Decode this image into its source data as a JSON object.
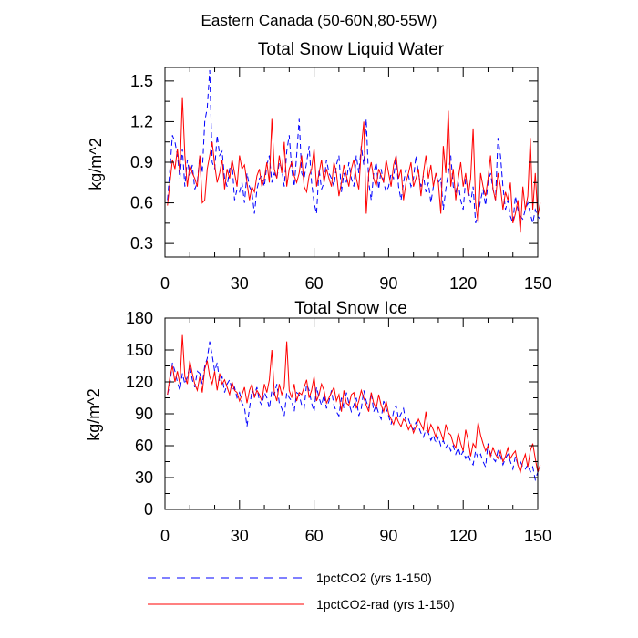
{
  "suptitle": "Eastern Canada (50-60N,80-55W)",
  "legend": {
    "placement": "bottom",
    "entries": [
      {
        "label": "1pctCO2 (yrs 1-150)",
        "color": "#0000ff",
        "dash": "dashed"
      },
      {
        "label": "1pctCO2-rad (yrs 1-150)",
        "color": "#ff0000",
        "dash": "solid"
      }
    ]
  },
  "chart_data": [
    {
      "type": "line",
      "title": "Total Snow Liquid Water",
      "ylabel": "kg/m^2",
      "xlabel": "",
      "xlim": [
        0,
        150
      ],
      "ylim": [
        0.2,
        1.6
      ],
      "xticks": [
        "0",
        "30",
        "60",
        "90",
        "120",
        "150"
      ],
      "yticks": [
        "0.3",
        "0.6",
        "0.9",
        "1.2",
        "1.5"
      ],
      "grid": false,
      "series": [
        {
          "name": "1pctCO2 (yrs 1-150)",
          "color": "#0000ff",
          "values": [
            0.62,
            0.85,
            1.1,
            1.05,
            0.95,
            0.78,
            1.0,
            0.72,
            0.92,
            0.8,
            0.88,
            0.7,
            0.75,
            0.95,
            0.82,
            1.2,
            1.3,
            1.58,
            0.9,
            0.85,
            1.1,
            0.95,
            0.98,
            0.78,
            0.72,
            0.85,
            0.9,
            0.62,
            0.7,
            0.68,
            0.75,
            0.6,
            0.82,
            0.72,
            0.68,
            0.52,
            0.7,
            0.78,
            0.8,
            0.72,
            0.88,
            0.95,
            0.75,
            0.82,
            0.78,
            0.9,
            0.85,
            0.72,
            0.98,
            1.1,
            0.85,
            0.72,
            0.95,
            1.22,
            0.82,
            0.78,
            0.9,
            1.02,
            0.75,
            0.6,
            0.52,
            0.85,
            0.7,
            0.75,
            0.92,
            0.82,
            0.78,
            0.72,
            0.88,
            0.95,
            0.68,
            0.82,
            0.75,
            0.9,
            0.78,
            0.72,
            0.95,
            0.82,
            1.02,
            0.88,
            1.22,
            0.75,
            0.62,
            0.82,
            0.9,
            0.7,
            0.85,
            0.75,
            0.68,
            0.72,
            0.82,
            0.78,
            0.95,
            0.72,
            0.62,
            0.75,
            0.85,
            0.8,
            0.72,
            0.78,
            0.95,
            0.82,
            0.72,
            0.8,
            0.68,
            0.75,
            0.6,
            0.72,
            0.82,
            0.75,
            0.78,
            0.55,
            0.7,
            0.82,
            0.95,
            0.72,
            0.68,
            0.75,
            0.62,
            0.55,
            0.78,
            0.7,
            0.6,
            0.72,
            0.45,
            0.52,
            0.62,
            0.7,
            0.58,
            0.75,
            0.82,
            0.7,
            0.62,
            1.08,
            0.95,
            0.72,
            0.55,
            0.62,
            0.5,
            0.45,
            0.65,
            0.55,
            0.5,
            0.48,
            0.55,
            0.6,
            0.52,
            0.45,
            0.55,
            0.5,
            0.48
          ]
        },
        {
          "name": "1pctCO2-rad (yrs 1-150)",
          "color": "#ff0000",
          "values": [
            0.58,
            0.75,
            0.92,
            0.85,
            1.0,
            0.82,
            1.38,
            0.95,
            0.72,
            0.88,
            0.82,
            0.78,
            0.72,
            0.95,
            0.6,
            0.62,
            0.85,
            0.95,
            1.05,
            0.88,
            0.75,
            0.82,
            0.92,
            0.7,
            0.85,
            0.78,
            0.92,
            0.82,
            0.72,
            0.95,
            0.85,
            0.88,
            0.75,
            0.62,
            0.72,
            0.68,
            0.8,
            0.85,
            0.72,
            0.78,
            0.9,
            0.75,
            1.22,
            0.85,
            0.78,
            0.95,
            0.82,
            1.05,
            0.72,
            0.85,
            0.9,
            0.8,
            0.75,
            0.82,
            0.95,
            0.72,
            0.68,
            0.8,
            0.85,
            1.0,
            0.72,
            0.82,
            0.92,
            0.75,
            0.85,
            0.78,
            0.72,
            0.9,
            0.82,
            0.65,
            0.75,
            0.88,
            0.8,
            0.72,
            0.85,
            0.92,
            0.78,
            0.7,
            1.0,
            1.2,
            0.52,
            0.82,
            0.9,
            0.78,
            0.72,
            0.85,
            0.8,
            0.75,
            0.92,
            0.82,
            0.72,
            0.88,
            0.95,
            0.78,
            0.85,
            0.62,
            0.75,
            0.82,
            0.9,
            0.72,
            0.78,
            0.85,
            0.65,
            0.82,
            0.95,
            0.78,
            0.88,
            0.72,
            0.82,
            0.75,
            0.52,
            1.02,
            0.82,
            1.28,
            0.72,
            0.85,
            0.62,
            0.78,
            0.9,
            0.72,
            0.82,
            0.65,
            0.78,
            1.15,
            0.6,
            0.45,
            0.82,
            0.72,
            0.65,
            0.78,
            0.95,
            0.7,
            0.62,
            0.82,
            0.72,
            0.55,
            0.68,
            0.62,
            0.75,
            0.45,
            0.52,
            0.62,
            0.38,
            0.72,
            0.55,
            0.65,
            1.08,
            0.55,
            0.82,
            0.5,
            0.6
          ]
        }
      ]
    },
    {
      "type": "line",
      "title": "Total Snow Ice",
      "ylabel": "kg/m^2",
      "xlabel": "",
      "xlim": [
        0,
        150
      ],
      "ylim": [
        0,
        180
      ],
      "xticks": [
        "0",
        "30",
        "60",
        "90",
        "120",
        "150"
      ],
      "yticks": [
        "0",
        "30",
        "60",
        "90",
        "120",
        "150",
        "180"
      ],
      "grid": false,
      "series": [
        {
          "name": "1pctCO2 (yrs 1-150)",
          "color": "#0000ff",
          "values": [
            108,
            118,
            138,
            130,
            120,
            112,
            128,
            118,
            125,
            135,
            122,
            115,
            130,
            128,
            118,
            135,
            142,
            158,
            145,
            130,
            138,
            120,
            125,
            110,
            118,
            122,
            112,
            115,
            105,
            110,
            100,
            96,
            78,
            95,
            112,
            108,
            115,
            102,
            98,
            110,
            105,
            95,
            112,
            108,
            118,
            100,
            95,
            88,
            110,
            105,
            102,
            92,
            110,
            108,
            98,
            95,
            118,
            112,
            100,
            92,
            115,
            105,
            98,
            108,
            95,
            102,
            112,
            98,
            92,
            88,
            105,
            95,
            110,
            100,
            92,
            98,
            105,
            88,
            95,
            112,
            102,
            95,
            110,
            92,
            98,
            90,
            85,
            102,
            95,
            88,
            80,
            92,
            98,
            85,
            90,
            95,
            82,
            85,
            78,
            75,
            82,
            78,
            72,
            68,
            75,
            72,
            65,
            70,
            62,
            68,
            60,
            65,
            58,
            62,
            55,
            60,
            52,
            58,
            50,
            55,
            48,
            52,
            45,
            42,
            55,
            48,
            52,
            45,
            40,
            62,
            52,
            48,
            45,
            55,
            50,
            42,
            48,
            52,
            45,
            38,
            50,
            42,
            45,
            40,
            38,
            42,
            35,
            40,
            28,
            35,
            40
          ]
        },
        {
          "name": "1pctCO2-rad (yrs 1-150)",
          "color": "#ff0000",
          "values": [
            108,
            125,
            135,
            120,
            130,
            118,
            164,
            125,
            118,
            140,
            128,
            118,
            112,
            125,
            110,
            132,
            140,
            125,
            118,
            130,
            112,
            128,
            118,
            122,
            115,
            108,
            120,
            112,
            110,
            102,
            108,
            115,
            100,
            112,
            118,
            105,
            112,
            108,
            102,
            118,
            110,
            122,
            150,
            110,
            102,
            118,
            108,
            115,
            158,
            112,
            105,
            118,
            102,
            110,
            108,
            115,
            122,
            105,
            112,
            125,
            102,
            108,
            118,
            112,
            100,
            105,
            110,
            115,
            102,
            108,
            92,
            112,
            100,
            98,
            108,
            110,
            95,
            102,
            112,
            105,
            98,
            92,
            110,
            100,
            95,
            108,
            98,
            92,
            102,
            90,
            85,
            80,
            88,
            82,
            78,
            85,
            82,
            75,
            80,
            72,
            78,
            85,
            80,
            75,
            92,
            72,
            80,
            75,
            68,
            78,
            72,
            65,
            80,
            72,
            70,
            62,
            58,
            72,
            62,
            55,
            75,
            65,
            50,
            62,
            58,
            82,
            70,
            62,
            55,
            60,
            50,
            58,
            52,
            48,
            55,
            45,
            50,
            58,
            48,
            52,
            55,
            42,
            35,
            45,
            52,
            40,
            55,
            62,
            48,
            35,
            42
          ]
        }
      ]
    }
  ]
}
